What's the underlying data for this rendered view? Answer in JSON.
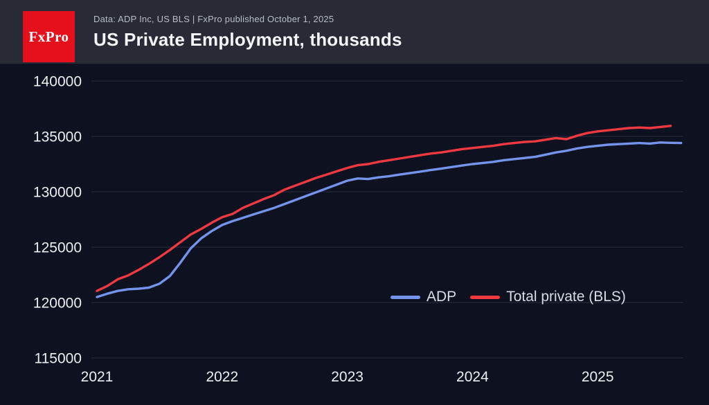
{
  "header": {
    "logo_text": "FxPro",
    "subtitle": "Data: ADP Inc, US BLS | FxPro published October 1, 2025",
    "title": "US Private Employment, thousands"
  },
  "colors": {
    "header_bg": "#282a35",
    "chart_bg": "#0e1120",
    "logo_red": "#e5101b",
    "gridline": "#2a2d3c",
    "axis_text": "#edeef2",
    "subtitle_text": "#b9bdc9",
    "legend_text": "#d9dce5",
    "adp_line": "#7394ea",
    "bls_line": "#ef3940"
  },
  "chart_data": {
    "type": "line",
    "title": "US Private Employment, thousands",
    "x_start": "2021-01",
    "x_frequency": "monthly",
    "grid": "horizontal-only",
    "legend_position": "inside-middle-right",
    "ylim": [
      115000,
      140000
    ],
    "y_axis": {
      "ticks": [
        140000,
        135000,
        130000,
        125000,
        120000,
        115000
      ]
    },
    "x_axis": {
      "ticks": [
        {
          "label": "2021",
          "month": 0
        },
        {
          "label": "2022",
          "month": 12
        },
        {
          "label": "2023",
          "month": 24
        },
        {
          "label": "2024",
          "month": 36
        },
        {
          "label": "2025",
          "month": 48
        }
      ]
    },
    "series": [
      {
        "id": "adp",
        "name": "ADP",
        "color": "#7394ea",
        "last_month": "2025-09",
        "values": [
          120500,
          120800,
          121050,
          121200,
          121250,
          121350,
          121700,
          122400,
          123600,
          124900,
          125800,
          126450,
          127000,
          127350,
          127650,
          127950,
          128250,
          128550,
          128900,
          129250,
          129600,
          129950,
          130300,
          130650,
          131000,
          131200,
          131150,
          131300,
          131400,
          131550,
          131680,
          131820,
          131960,
          132090,
          132230,
          132370,
          132500,
          132600,
          132700,
          132850,
          132950,
          133050,
          133150,
          133350,
          133550,
          133700,
          133900,
          134050,
          134150,
          134250,
          134300,
          134350,
          134400,
          134350,
          134450,
          134420,
          134400
        ]
      },
      {
        "id": "bls",
        "name": "Total private (BLS)",
        "color": "#ef3940",
        "last_month": "2025-08",
        "values": [
          121050,
          121500,
          122100,
          122450,
          122950,
          123500,
          124100,
          124750,
          125450,
          126150,
          126650,
          127200,
          127700,
          128000,
          128550,
          128950,
          129350,
          129700,
          130200,
          130550,
          130900,
          131250,
          131550,
          131850,
          132150,
          132400,
          132500,
          132700,
          132850,
          133000,
          133150,
          133300,
          133450,
          133550,
          133700,
          133850,
          133950,
          134050,
          134150,
          134300,
          134400,
          134500,
          134550,
          134700,
          134850,
          134750,
          135050,
          135300,
          135450,
          135550,
          135650,
          135750,
          135800,
          135750,
          135850,
          135950
        ]
      }
    ]
  }
}
